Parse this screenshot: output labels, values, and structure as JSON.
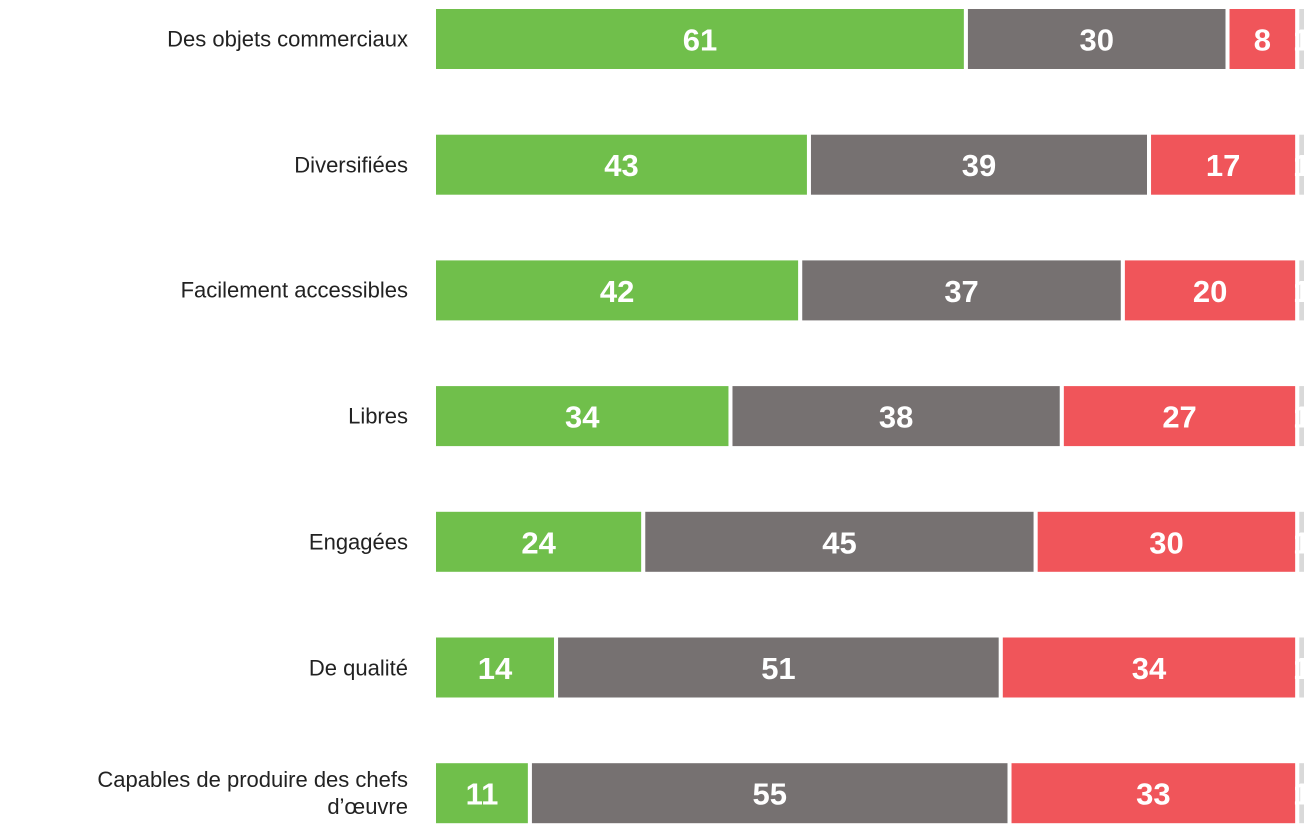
{
  "chart_data": {
    "type": "stacked-bar",
    "categories": [
      "Des objets commerciaux",
      "Diversifiées",
      "Facilement accessibles",
      "Libres",
      "Engagées",
      "De qualité",
      "Capables de produire des chefs\nd’œuvre"
    ],
    "series": [
      {
        "color": "#70bf4b",
        "values": [
          61,
          43,
          42,
          34,
          24,
          14,
          11
        ]
      },
      {
        "color": "#767171",
        "values": [
          30,
          39,
          37,
          38,
          45,
          51,
          55
        ]
      },
      {
        "color": "#f0555a",
        "values": [
          8,
          17,
          20,
          27,
          30,
          34,
          33
        ]
      },
      {
        "color": "#d9d9d9",
        "values": [
          1,
          1,
          1,
          1,
          1,
          1,
          1
        ]
      }
    ],
    "xlim": [
      0,
      100
    ]
  }
}
